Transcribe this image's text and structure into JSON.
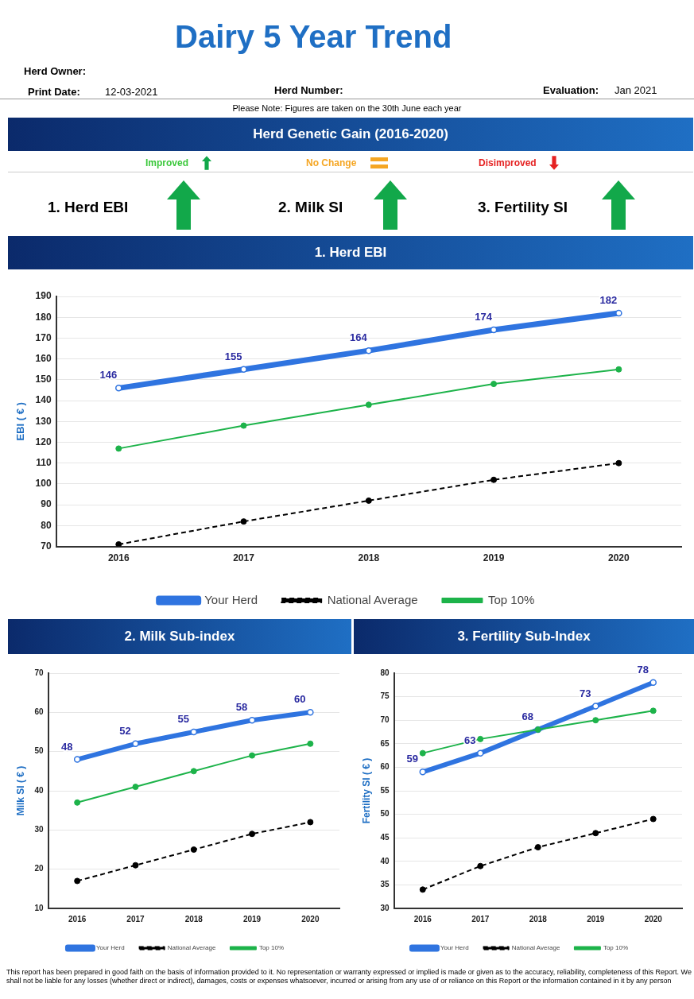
{
  "chart_data": [
    {
      "type": "other",
      "title": "Dairy 5 Year Trend",
      "annotations": [
        "Herd Owner:",
        "Print Date:",
        "12-03-2021",
        "Herd Number:",
        "Evaluation:",
        "Jan 2021",
        "Please Note: Figures are taken on the 30th June each year",
        "Herd Genetic Gain (2016-2020)",
        "Improved",
        "No Change",
        "Disimproved",
        "1. Herd EBI",
        "2. Milk SI",
        "3. Fertility SI",
        "This report has been prepared in good faith on the basis of information provided to it. No representation or warranty expressed or implied is made or given as to the accuracy, reliability, completeness of this Report. We shall not be liable for any losses (whether direct or indirect), damages, costs or expenses whatsoever, incurred or arising from any use of or reliance on this Report or the information contained in it by any person"
      ]
    },
    {
      "type": "line",
      "title": "1. Herd EBI",
      "ylabel": "EBI ( € )",
      "categories": [
        "2016",
        "2017",
        "2018",
        "2019",
        "2020"
      ],
      "ylim": [
        70,
        190
      ],
      "yticks": [
        70,
        80,
        90,
        100,
        110,
        120,
        130,
        140,
        150,
        160,
        170,
        180,
        190
      ],
      "grid": "y",
      "legend": "bottom",
      "marker": "circle",
      "series": [
        {
          "name": "Your Herd",
          "color": "#2f74e0",
          "values": [
            146,
            155,
            164,
            174,
            182
          ],
          "value_labels": [
            "146",
            "155",
            "164",
            "174",
            "182"
          ],
          "line_style": "solid"
        },
        {
          "name": "National Average",
          "color": "#000000",
          "values": [
            71,
            82,
            92,
            102,
            110
          ],
          "line_style": "dashed"
        },
        {
          "name": "Top 10%",
          "color": "#1db34a",
          "values": [
            117,
            128,
            138,
            148,
            155
          ],
          "line_style": "solid"
        }
      ]
    },
    {
      "type": "line",
      "title": "2. Milk Sub-index",
      "ylabel": "Milk SI ( € )",
      "categories": [
        "2016",
        "2017",
        "2018",
        "2019",
        "2020"
      ],
      "ylim": [
        10,
        70
      ],
      "yticks": [
        10,
        20,
        30,
        40,
        50,
        60,
        70
      ],
      "grid": "y",
      "legend": "bottom",
      "marker": "circle",
      "series": [
        {
          "name": "Your Herd",
          "color": "#2f74e0",
          "values": [
            48,
            52,
            55,
            58,
            60
          ],
          "value_labels": [
            "48",
            "52",
            "55",
            "58",
            "60"
          ],
          "line_style": "solid"
        },
        {
          "name": "National Average",
          "color": "#000000",
          "values": [
            17,
            21,
            25,
            29,
            32
          ],
          "line_style": "dashed"
        },
        {
          "name": "Top 10%",
          "color": "#1db34a",
          "values": [
            37,
            41,
            45,
            49,
            52
          ],
          "line_style": "solid"
        }
      ]
    },
    {
      "type": "line",
      "title": "3. Fertility Sub-Index",
      "ylabel": "Fertility SI ( € )",
      "categories": [
        "2016",
        "2017",
        "2018",
        "2019",
        "2020"
      ],
      "ylim": [
        30,
        80
      ],
      "yticks": [
        30,
        35,
        40,
        45,
        50,
        55,
        60,
        65,
        70,
        75,
        80
      ],
      "grid": "y",
      "legend": "bottom",
      "marker": "circle",
      "series": [
        {
          "name": "Your Herd",
          "color": "#2f74e0",
          "values": [
            59,
            63,
            68,
            73,
            78
          ],
          "value_labels": [
            "59",
            "63",
            "68",
            "73",
            "78"
          ],
          "line_style": "solid"
        },
        {
          "name": "National Average",
          "color": "#000000",
          "values": [
            34,
            39,
            43,
            46,
            49
          ],
          "line_style": "dashed"
        },
        {
          "name": "Top 10%",
          "color": "#1db34a",
          "values": [
            63,
            66,
            68,
            70,
            72
          ],
          "line_style": "solid"
        }
      ]
    }
  ]
}
